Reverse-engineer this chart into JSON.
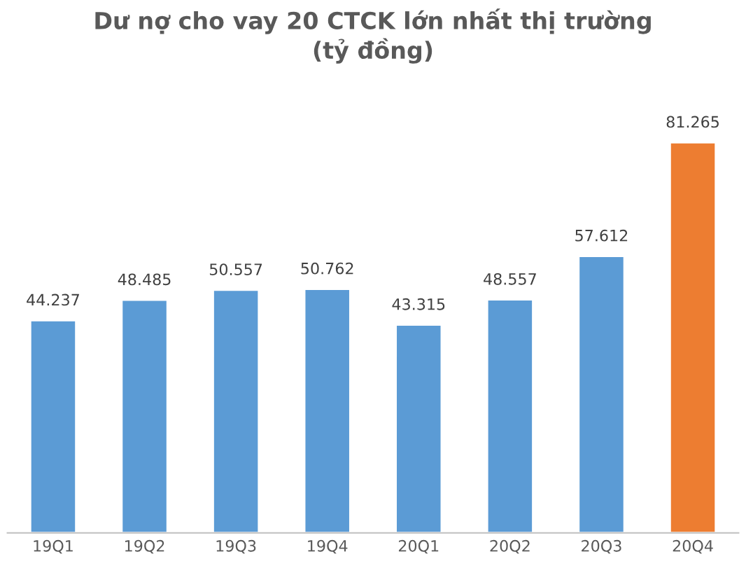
{
  "chart_data": {
    "type": "bar",
    "title": "Dư nợ cho vay 20 CTCK lớn nhất thị trường\n(tỷ đồng)",
    "categories": [
      "19Q1",
      "19Q2",
      "19Q3",
      "19Q4",
      "20Q1",
      "20Q2",
      "20Q3",
      "20Q4"
    ],
    "values": [
      44237,
      48485,
      50557,
      50762,
      43315,
      48557,
      57612,
      81265
    ],
    "value_labels": [
      "44.237",
      "48.485",
      "50.557",
      "50.762",
      "43.315",
      "48.557",
      "57.612",
      "81.265"
    ],
    "colors": [
      "#5b9bd5",
      "#5b9bd5",
      "#5b9bd5",
      "#5b9bd5",
      "#5b9bd5",
      "#5b9bd5",
      "#5b9bd5",
      "#ed7d31"
    ],
    "grid": false,
    "legend": false
  }
}
